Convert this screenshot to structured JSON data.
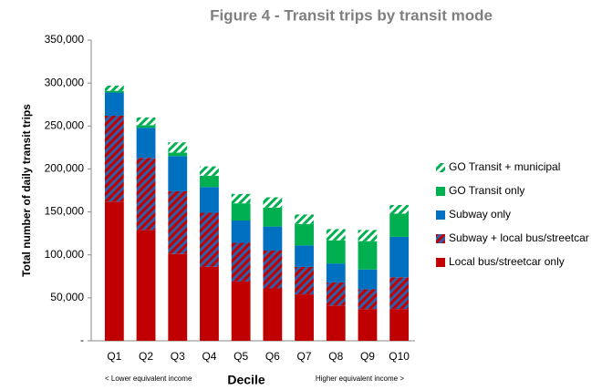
{
  "chart_data": {
    "type": "stacked_bar",
    "title": "Figure 4 - Transit trips by transit mode",
    "x_label": "Decile",
    "y_label": "Total number of daily transit trips",
    "annotations": [
      "< Lower equivalent income",
      "Higher equivalent income >"
    ],
    "categories": [
      "Q1",
      "Q2",
      "Q3",
      "Q4",
      "Q5",
      "Q6",
      "Q7",
      "Q8",
      "Q9",
      "Q10"
    ],
    "series": [
      {
        "name": "Local bus/streetcar only",
        "color": "#c00000",
        "values": [
          162000,
          129000,
          101000,
          86000,
          69000,
          61000,
          54000,
          41000,
          37000,
          37000
        ]
      },
      {
        "name": "Subway + local bus/streetcar",
        "color": "#c00000",
        "hatch_color": "#2e5fa8",
        "values": [
          100000,
          84000,
          73000,
          63000,
          45000,
          44000,
          32000,
          27000,
          23000,
          37000
        ]
      },
      {
        "name": "Subway only",
        "color": "#0070c0",
        "values": [
          27000,
          35000,
          41000,
          30000,
          26000,
          28000,
          25000,
          22000,
          23000,
          47000
        ]
      },
      {
        "name": "GO Transit only",
        "color": "#00b050",
        "values": [
          2000,
          3000,
          4000,
          13000,
          20000,
          22000,
          25000,
          27000,
          33000,
          27000
        ]
      },
      {
        "name": "GO Transit + municipal",
        "color": "#ffffff",
        "hatch_color": "#00b050",
        "values": [
          6000,
          9000,
          12000,
          11000,
          11000,
          12000,
          11000,
          13000,
          13000,
          10000
        ]
      }
    ],
    "ylim": [
      0,
      350000
    ],
    "yticks": [
      {
        "value": 0,
        "label": "-"
      },
      {
        "value": 50000,
        "label": "50,000"
      },
      {
        "value": 100000,
        "label": "100,000"
      },
      {
        "value": 150000,
        "label": "150,000"
      },
      {
        "value": 200000,
        "label": "200,000"
      },
      {
        "value": 250000,
        "label": "250,000"
      },
      {
        "value": 300000,
        "label": "300,000"
      },
      {
        "value": 350000,
        "label": "350,000"
      }
    ],
    "grid": false,
    "legend": "right"
  }
}
